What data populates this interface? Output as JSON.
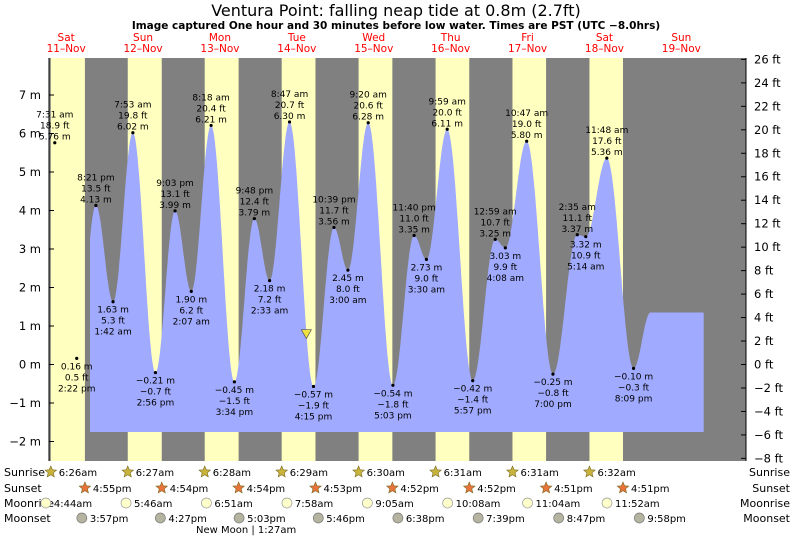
{
  "chart_data": {
    "type": "area",
    "title": "Ventura Point: falling  neap tide at 0.8m (2.7ft)",
    "subtitle": "Image captured One hour and 30 minutes before low water. Times are PST (UTC −8.0hrs)",
    "days": [
      {
        "dow": "Sat",
        "date": "11–Nov"
      },
      {
        "dow": "Sun",
        "date": "12–Nov"
      },
      {
        "dow": "Mon",
        "date": "13–Nov"
      },
      {
        "dow": "Tue",
        "date": "14–Nov"
      },
      {
        "dow": "Wed",
        "date": "15–Nov"
      },
      {
        "dow": "Thu",
        "date": "16–Nov"
      },
      {
        "dow": "Fri",
        "date": "17–Nov"
      },
      {
        "dow": "Sat",
        "date": "18–Nov"
      },
      {
        "dow": "Sun",
        "date": "19–Nov"
      }
    ],
    "y_left_ticks": [
      "7 m",
      "6 m",
      "5 m",
      "4 m",
      "3 m",
      "2 m",
      "1 m",
      "0 m",
      "−1 m",
      "−2 m"
    ],
    "y_left_range_m": [
      -2.4,
      8.0
    ],
    "y_right_ticks": [
      "26 ft",
      "24 ft",
      "22 ft",
      "20 ft",
      "18 ft",
      "16 ft",
      "14 ft",
      "12 ft",
      "10 ft",
      "8 ft",
      "6 ft",
      "4 ft",
      "2 ft",
      "0 ft",
      "−2 ft",
      "−4 ft",
      "−6 ft",
      "−8 ft"
    ],
    "current_level_m": 0.8,
    "tides": [
      {
        "lines": [
          "7:31 am",
          "18.9 ft",
          "5.76 m"
        ],
        "day": 0.3132,
        "m": 5.76
      },
      {
        "lines": [
          "0.16 m",
          "0.5 ft",
          "2:22 pm"
        ],
        "day": 0.5986,
        "m": 0.16
      },
      {
        "lines": [
          "8:21 pm",
          "13.5 ft",
          "4.13 m"
        ],
        "day": 0.8479,
        "m": 4.13
      },
      {
        "lines": [
          "1.63 m",
          "5.3 ft",
          "1:42 am"
        ],
        "day": 1.0708,
        "m": 1.63
      },
      {
        "lines": [
          "7:53 am",
          "19.8 ft",
          "6.02 m"
        ],
        "day": 1.3285,
        "m": 6.02
      },
      {
        "lines": [
          "−0.21 m",
          "−0.7 ft",
          "2:56 pm"
        ],
        "day": 1.6222,
        "m": -0.21
      },
      {
        "lines": [
          "9:03 pm",
          "13.1 ft",
          "3.99 m"
        ],
        "day": 1.8771,
        "m": 3.99
      },
      {
        "lines": [
          "1.90 m",
          "6.2 ft",
          "2:07 am"
        ],
        "day": 2.0882,
        "m": 1.9
      },
      {
        "lines": [
          "8:18 am",
          "20.4 ft",
          "6.21 m"
        ],
        "day": 2.3458,
        "m": 6.21
      },
      {
        "lines": [
          "−0.45 m",
          "−1.5 ft",
          "3:34 pm"
        ],
        "day": 2.6486,
        "m": -0.45
      },
      {
        "lines": [
          "9:48 pm",
          "12.4 ft",
          "3.79 m"
        ],
        "day": 2.9083,
        "m": 3.79
      },
      {
        "lines": [
          "2.18 m",
          "7.2 ft",
          "2:33 am"
        ],
        "day": 3.1063,
        "m": 2.18
      },
      {
        "lines": [
          "8:47 am",
          "20.7 ft",
          "6.30 m"
        ],
        "day": 3.366,
        "m": 6.3
      },
      {
        "lines": [
          "−0.57 m",
          "−1.9 ft",
          "4:15 pm"
        ],
        "day": 3.6771,
        "m": -0.57
      },
      {
        "lines": [
          "10:39 pm",
          "11.7 ft",
          "3.56 m"
        ],
        "day": 3.9438,
        "m": 3.56
      },
      {
        "lines": [
          "2.45 m",
          "8.0 ft",
          "3:00 am"
        ],
        "day": 4.125,
        "m": 2.45
      },
      {
        "lines": [
          "9:20 am",
          "20.6 ft",
          "6.28 m"
        ],
        "day": 4.3889,
        "m": 6.28
      },
      {
        "lines": [
          "−0.54 m",
          "−1.8 ft",
          "5:03 pm"
        ],
        "day": 4.7104,
        "m": -0.54
      },
      {
        "lines": [
          "11:40 pm",
          "11.0 ft",
          "3.35 m"
        ],
        "day": 4.9861,
        "m": 3.35
      },
      {
        "lines": [
          "2.73 m",
          "9.0 ft",
          "3:30 am"
        ],
        "day": 5.1458,
        "m": 2.73
      },
      {
        "lines": [
          "9:59 am",
          "20.0 ft",
          "6.11 m"
        ],
        "day": 5.416,
        "m": 6.11
      },
      {
        "lines": [
          "−0.42 m",
          "−1.4 ft",
          "5:57 pm"
        ],
        "day": 5.7479,
        "m": -0.42
      },
      {
        "lines": [
          "12:59 am",
          "10.7 ft",
          "3.25 m"
        ],
        "day": 6.041,
        "m": 3.25
      },
      {
        "lines": [
          "3.03 m",
          "9.9 ft",
          "4:08 am"
        ],
        "day": 6.1722,
        "m": 3.03
      },
      {
        "lines": [
          "10:47 am",
          "19.0 ft",
          "5.80 m"
        ],
        "day": 6.4493,
        "m": 5.8
      },
      {
        "lines": [
          "−0.25 m",
          "−0.8 ft",
          "7:00 pm"
        ],
        "day": 6.7917,
        "m": -0.25
      },
      {
        "lines": [
          "2:35 am",
          "11.1 ft",
          "3.37 m"
        ],
        "day": 7.1076,
        "m": 3.37
      },
      {
        "lines": [
          "3.32 m",
          "10.9 ft",
          "5:14 am"
        ],
        "day": 7.2181,
        "m": 3.32
      },
      {
        "lines": [
          "11:48 am",
          "17.6 ft",
          "5.36 m"
        ],
        "day": 7.4917,
        "m": 5.36
      },
      {
        "lines": [
          "−0.10 m",
          "−0.3 ft",
          "8:09 pm"
        ],
        "day": 7.8396,
        "m": -0.1
      }
    ],
    "rows": [
      {
        "name": "Sunrise",
        "kind": "sunrise",
        "items": [
          {
            "day": 0.261,
            "t": "6:26am"
          },
          {
            "day": 1.262,
            "t": "6:27am"
          },
          {
            "day": 2.263,
            "t": "6:28am"
          },
          {
            "day": 3.264,
            "t": "6:29am"
          },
          {
            "day": 4.264,
            "t": "6:30am"
          },
          {
            "day": 5.265,
            "t": "6:31am"
          },
          {
            "day": 6.265,
            "t": "6:31am"
          },
          {
            "day": 7.266,
            "t": "6:32am"
          }
        ]
      },
      {
        "name": "Sunset",
        "kind": "sunset",
        "items": [
          {
            "day": 0.705,
            "t": "4:55pm"
          },
          {
            "day": 1.704,
            "t": "4:54pm"
          },
          {
            "day": 2.704,
            "t": "4:54pm"
          },
          {
            "day": 3.703,
            "t": "4:53pm"
          },
          {
            "day": 4.703,
            "t": "4:52pm"
          },
          {
            "day": 5.703,
            "t": "4:52pm"
          },
          {
            "day": 6.702,
            "t": "4:51pm"
          },
          {
            "day": 7.702,
            "t": "4:51pm"
          }
        ]
      },
      {
        "name": "Moonrise",
        "kind": "moonrise",
        "items": [
          {
            "day": 0.197,
            "t": "4:44am"
          },
          {
            "day": 1.24,
            "t": "5:46am"
          },
          {
            "day": 2.285,
            "t": "6:51am"
          },
          {
            "day": 3.332,
            "t": "7:58am"
          },
          {
            "day": 4.378,
            "t": "9:05am"
          },
          {
            "day": 5.422,
            "t": "10:08am"
          },
          {
            "day": 6.461,
            "t": "11:04am"
          },
          {
            "day": 7.494,
            "t": "11:52am"
          }
        ]
      },
      {
        "name": "Moonset",
        "kind": "moonset",
        "items": [
          {
            "day": 0.665,
            "t": "3:57pm"
          },
          {
            "day": 1.686,
            "t": "4:27pm"
          },
          {
            "day": 2.71,
            "t": "5:03pm"
          },
          {
            "day": 3.74,
            "t": "5:46pm"
          },
          {
            "day": 4.775,
            "t": "6:38pm"
          },
          {
            "day": 5.819,
            "t": "7:39pm"
          },
          {
            "day": 6.866,
            "t": "8:47pm"
          },
          {
            "day": 7.915,
            "t": "9:58pm"
          }
        ]
      }
    ],
    "new_moon_label": "New Moon | 1:27am",
    "colors": {
      "night": "#808080",
      "day": "#ffffbf",
      "water": "#a0aaff",
      "day_labels": "#ff0000",
      "sunrise_star": "#c8b43c",
      "sunset_star": "#e8743c",
      "moonrise": "#ffffcc",
      "moonset": "#b4b4a0",
      "marker": "#f0e040"
    }
  }
}
